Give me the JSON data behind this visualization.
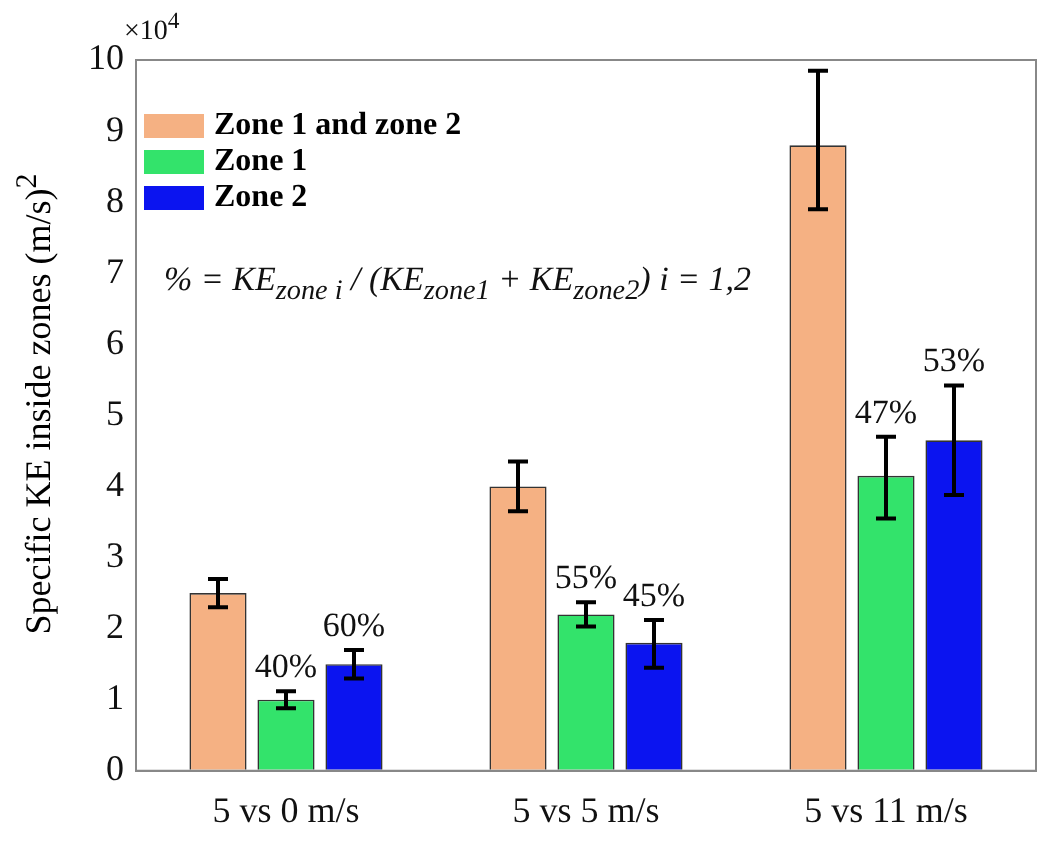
{
  "chart_data": {
    "type": "bar",
    "ylabel": "Specific KE inside zones (m/s)$^{2}$",
    "categories": [
      "5 vs 0 m/s",
      "5 vs 5 m/s",
      "5 vs 11 m/s"
    ],
    "series": [
      {
        "name": "Zone 1 and zone 2",
        "color": "#f5b183",
        "values": [
          2.5,
          4.0,
          8.8
        ],
        "errors": [
          0.2,
          0.35,
          [
            7.9,
            9.85
          ]
        ]
      },
      {
        "name": "Zone 1",
        "color": "#33e36b",
        "values": [
          1.0,
          2.2,
          4.15
        ],
        "errors": [
          0.12,
          0.17,
          [
            3.55,
            4.7
          ]
        ]
      },
      {
        "name": "Zone 2",
        "color": "#0b14f0",
        "values": [
          1.5,
          1.8,
          4.65
        ],
        "errors": [
          0.2,
          [
            1.45,
            2.12
          ],
          [
            3.88,
            5.42
          ]
        ]
      }
    ],
    "ylim": [
      0,
      10
    ],
    "yticks": [
      0,
      1,
      2,
      3,
      4,
      5,
      6,
      7,
      8,
      9,
      10
    ],
    "grid": false,
    "legend": "top left",
    "annotations": [
      "×10$^{4}$",
      "% = KE$_{zone i}$ / (KE$_{zone1}$ + KE$_{zone2}$)   i = 1,2",
      "40%",
      "60%",
      "55%",
      "45%",
      "47%",
      "53%"
    ]
  }
}
